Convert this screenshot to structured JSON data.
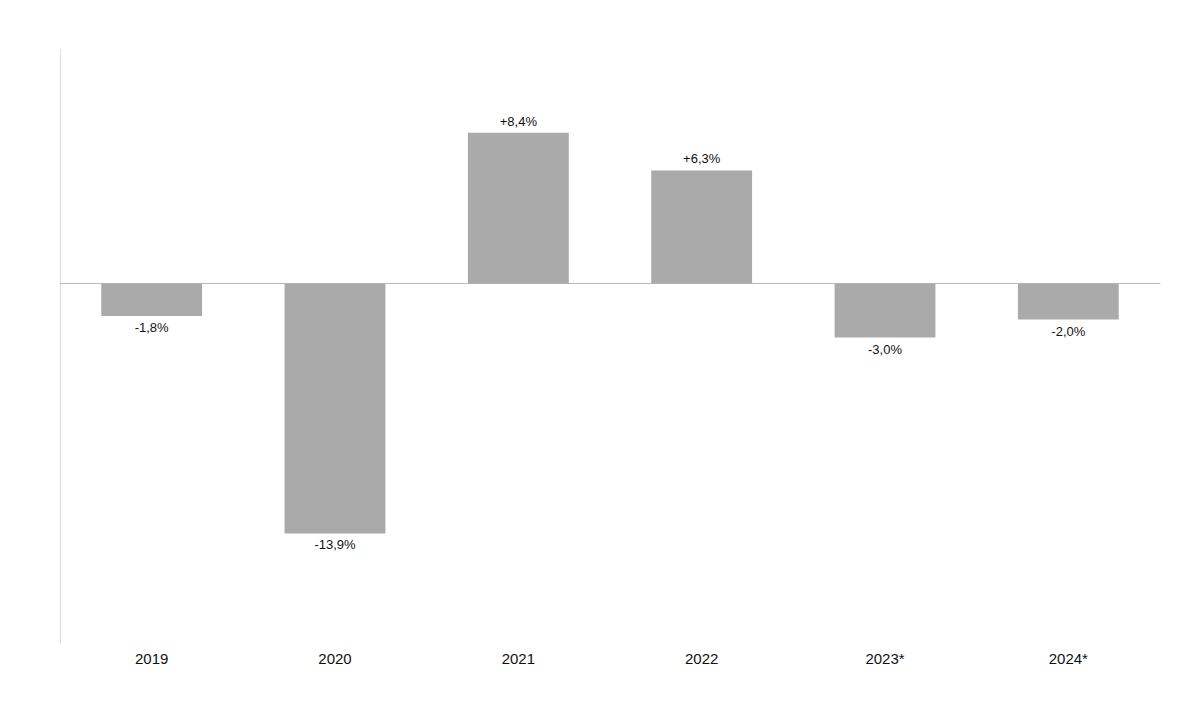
{
  "chart_data": {
    "type": "bar",
    "categories": [
      "2019",
      "2020",
      "2021",
      "2022",
      "2023*",
      "2024*"
    ],
    "values": [
      -1.8,
      -13.9,
      8.4,
      6.3,
      -3.0,
      -2.0
    ],
    "value_labels": [
      "-1,8%",
      "-13,9%",
      "+8,4%",
      "+6,3%",
      "-3,0%",
      "-2,0%"
    ],
    "color": "#aaaaaa",
    "ylim": [
      -20,
      13
    ],
    "data_labels": true,
    "tick_labels": "x",
    "grid": false
  }
}
